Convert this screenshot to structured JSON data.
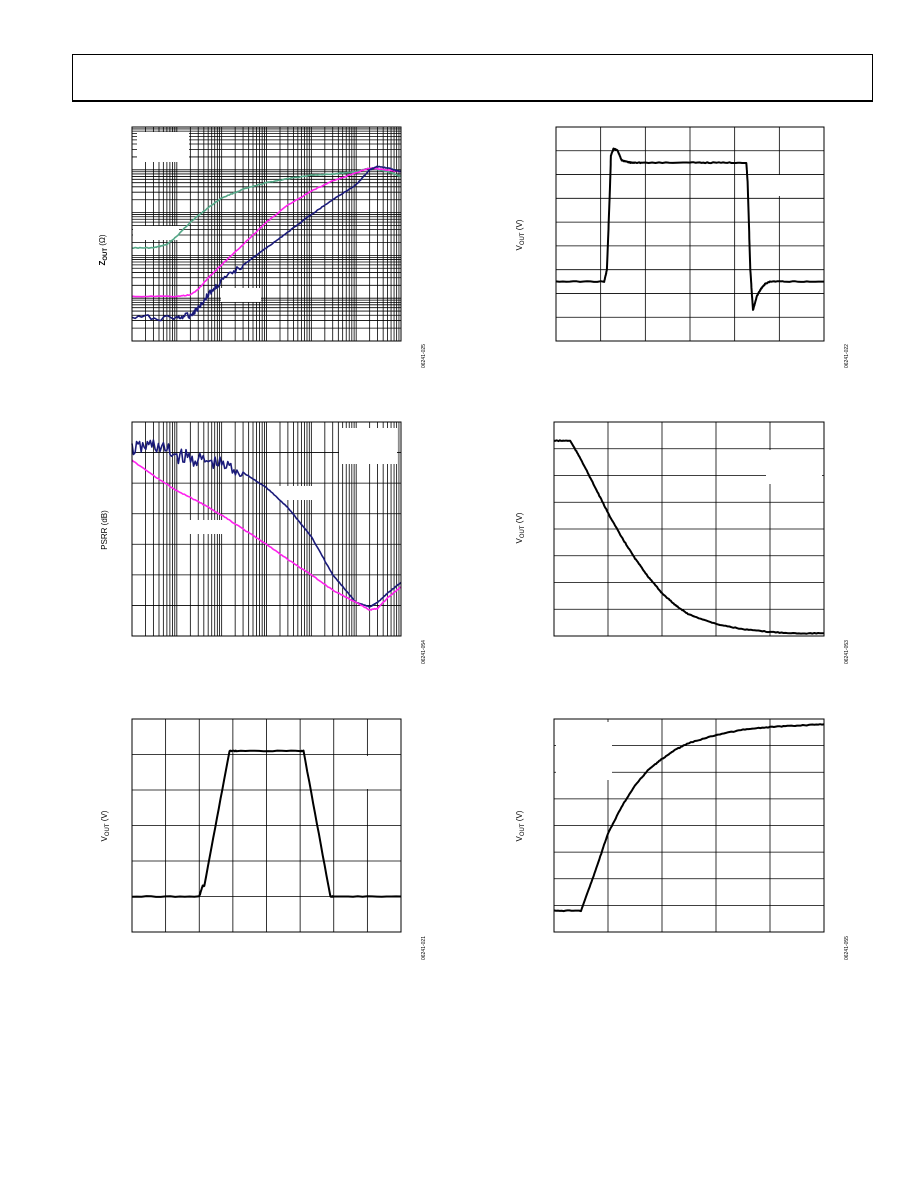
{
  "header": {
    "title": ""
  },
  "colors": {
    "navy": "#1a1a7a",
    "magenta": "#ff22ee",
    "teal": "#55a888",
    "black": "#000000"
  },
  "chart_data": [
    {
      "id": "zout",
      "type": "line",
      "ylabel_main": "Z",
      "ylabel_sub": "OUT",
      "ylabel_unit": " (Ω)",
      "figure_id": "06241-025",
      "xscale": "log",
      "yscale": "log",
      "xlim": [
        10,
        10000000
      ],
      "ylim": [
        0.001,
        100
      ],
      "grid": "on",
      "legend": "none",
      "series": [
        {
          "color": "teal",
          "x": [
            10,
            30,
            60,
            100,
            200,
            500,
            1000,
            3000,
            10000,
            30000,
            100000,
            300000,
            1000000,
            2000000,
            5000000,
            10000000
          ],
          "y": [
            0.15,
            0.15,
            0.18,
            0.28,
            0.6,
            1.3,
            2.2,
            3.5,
            5.0,
            6.2,
            7.5,
            8.0,
            9.0,
            11,
            9,
            7
          ]
        },
        {
          "color": "magenta",
          "x": [
            10,
            100,
            200,
            300,
            500,
            1000,
            3000,
            10000,
            30000,
            100000,
            300000,
            1000000,
            2000000,
            5000000,
            10000000
          ],
          "y": [
            0.011,
            0.011,
            0.012,
            0.016,
            0.03,
            0.06,
            0.18,
            0.6,
            1.5,
            3.2,
            5.5,
            8.5,
            11,
            10,
            9
          ]
        },
        {
          "color": "navy",
          "x": [
            10,
            100,
            200,
            300,
            500,
            1000,
            3000,
            10000,
            30000,
            100000,
            300000,
            1000000,
            2000000,
            3000000,
            5000000,
            10000000
          ],
          "y": [
            0.0035,
            0.0035,
            0.004,
            0.006,
            0.012,
            0.025,
            0.06,
            0.15,
            0.35,
            0.9,
            2.0,
            4.5,
            10,
            12,
            11,
            9
          ]
        }
      ]
    },
    {
      "id": "psrr",
      "type": "line",
      "ylabel": "PSRR (dB)",
      "figure_id": "06241-054",
      "xscale": "log",
      "xlim": [
        10,
        10000000
      ],
      "ylim": [
        -140,
        0
      ],
      "grid": "on",
      "legend": "none",
      "series": [
        {
          "color": "navy",
          "x": [
            10,
            30,
            100,
            300,
            1000,
            3000,
            10000,
            30000,
            100000,
            300000,
            1000000,
            2000000,
            3000000,
            5000000,
            10000000
          ],
          "y": [
            -18,
            -15,
            -22,
            -25,
            -28,
            -33,
            -43,
            -56,
            -75,
            -100,
            -118,
            -121,
            -118,
            -112,
            -105
          ]
        },
        {
          "color": "magenta",
          "x": [
            10,
            30,
            100,
            300,
            1000,
            3000,
            10000,
            30000,
            100000,
            300000,
            1000000,
            2000000,
            3000000,
            5000000,
            10000000
          ],
          "y": [
            -25,
            -35,
            -45,
            -52,
            -61,
            -70,
            -80,
            -90,
            -100,
            -110,
            -118,
            -123,
            -122,
            -115,
            -108
          ]
        }
      ]
    },
    {
      "id": "step-response",
      "type": "line",
      "ylabel_main": "V",
      "ylabel_sub": "OUT",
      "ylabel_unit": " (V)",
      "figure_id": "06241-022",
      "xlim": [
        0,
        10
      ],
      "ylim": [
        -2.5,
        6.5
      ],
      "grid": "on",
      "legend": "none",
      "series": [
        {
          "color": "black",
          "x": [
            0,
            1.8,
            1.9,
            2.0,
            2.05,
            2.15,
            2.3,
            2.45,
            2.6,
            2.8,
            3.2,
            5.0,
            6.0,
            7.1,
            7.15,
            7.25,
            7.35,
            7.5,
            7.65,
            7.8,
            8.0,
            8.5,
            10
          ],
          "y": [
            0,
            0,
            0.5,
            3.5,
            5.3,
            5.6,
            5.5,
            5.1,
            5.05,
            5.0,
            5.0,
            5.0,
            5.0,
            5.0,
            4.2,
            0.5,
            -1.2,
            -0.6,
            -0.3,
            -0.1,
            0,
            0,
            0
          ]
        }
      ]
    },
    {
      "id": "decay",
      "type": "line",
      "ylabel_main": "V",
      "ylabel_sub": "OUT",
      "ylabel_unit": " (V)",
      "figure_id": "06241-053",
      "xlim": [
        0,
        10
      ],
      "ylim": [
        0,
        8
      ],
      "grid": "on",
      "legend": "none",
      "series": [
        {
          "color": "black",
          "x": [
            0,
            0.6,
            1.0,
            1.5,
            2.0,
            2.5,
            3.0,
            3.5,
            4.0,
            4.5,
            5.0,
            6.0,
            7.0,
            8.0,
            9.0,
            10
          ],
          "y": [
            7.3,
            7.3,
            6.6,
            5.6,
            4.6,
            3.7,
            2.9,
            2.2,
            1.6,
            1.15,
            0.8,
            0.45,
            0.25,
            0.15,
            0.1,
            0.1
          ]
        }
      ]
    },
    {
      "id": "pulse",
      "type": "line",
      "ylabel_main": "V",
      "ylabel_sub": "OUT",
      "ylabel_unit": " (V)",
      "figure_id": "06241-021",
      "xlim": [
        0,
        8
      ],
      "ylim": [
        -1,
        5
      ],
      "grid": "on",
      "legend": "none",
      "series": [
        {
          "color": "black",
          "x": [
            0,
            2.0,
            2.1,
            2.15,
            2.9,
            3.1,
            5.0,
            5.1,
            5.9,
            6.0,
            8
          ],
          "y": [
            0,
            0,
            0.3,
            0.3,
            4.1,
            4.1,
            4.1,
            4.1,
            0,
            0,
            0
          ]
        }
      ]
    },
    {
      "id": "rise",
      "type": "line",
      "ylabel_main": "V",
      "ylabel_sub": "OUT",
      "ylabel_unit": " (V)",
      "figure_id": "06241-055",
      "xlim": [
        0,
        10
      ],
      "ylim": [
        -0.8,
        7.2
      ],
      "grid": "on",
      "legend": "none",
      "series": [
        {
          "color": "black",
          "x": [
            0,
            1.0,
            1.5,
            2.0,
            2.5,
            3.0,
            3.5,
            4.0,
            4.5,
            5.0,
            6.0,
            7.0,
            8.0,
            9.0,
            10
          ],
          "y": [
            0,
            0,
            1.4,
            2.9,
            3.9,
            4.7,
            5.3,
            5.7,
            6.05,
            6.3,
            6.6,
            6.8,
            6.9,
            6.95,
            7.0
          ]
        }
      ]
    }
  ]
}
